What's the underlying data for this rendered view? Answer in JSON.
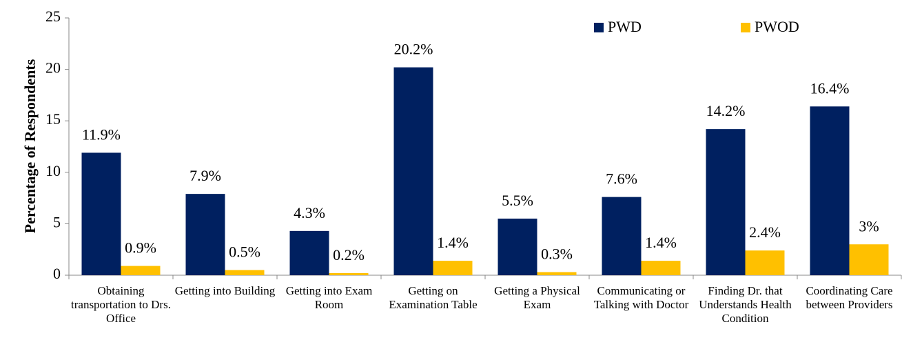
{
  "chart_data": {
    "type": "bar",
    "y_label": "Percentage of Respondents",
    "categories": [
      "Obtaining transportation to Drs. Office",
      "Getting into Building",
      "Getting into Exam Room",
      "Getting on Examination Table",
      "Getting a Physical Exam",
      "Communicating or Talking with Doctor",
      "Finding Dr. that Understands Health Condition",
      "Coordinating Care between Providers"
    ],
    "series": [
      {
        "name": "PWD",
        "color": "#002060",
        "values": [
          11.9,
          7.9,
          4.3,
          20.2,
          5.5,
          7.6,
          14.2,
          16.4
        ],
        "value_labels": [
          "11.9%",
          "7.9%",
          "4.3%",
          "20.2%",
          "5.5%",
          "7.6%",
          "14.2%",
          "16.4%"
        ]
      },
      {
        "name": "PWOD",
        "color": "#FFC000",
        "values": [
          0.9,
          0.5,
          0.2,
          1.4,
          0.3,
          1.4,
          2.4,
          3
        ],
        "value_labels": [
          "0.9%",
          "0.5%",
          "0.2%",
          "1.4%",
          "0.3%",
          "1.4%",
          "2.4%",
          "3%"
        ]
      }
    ],
    "ylim": [
      0,
      25
    ],
    "yticks": [
      0,
      5,
      10,
      15,
      20,
      25
    ],
    "grid": false,
    "legend": "top-right"
  }
}
